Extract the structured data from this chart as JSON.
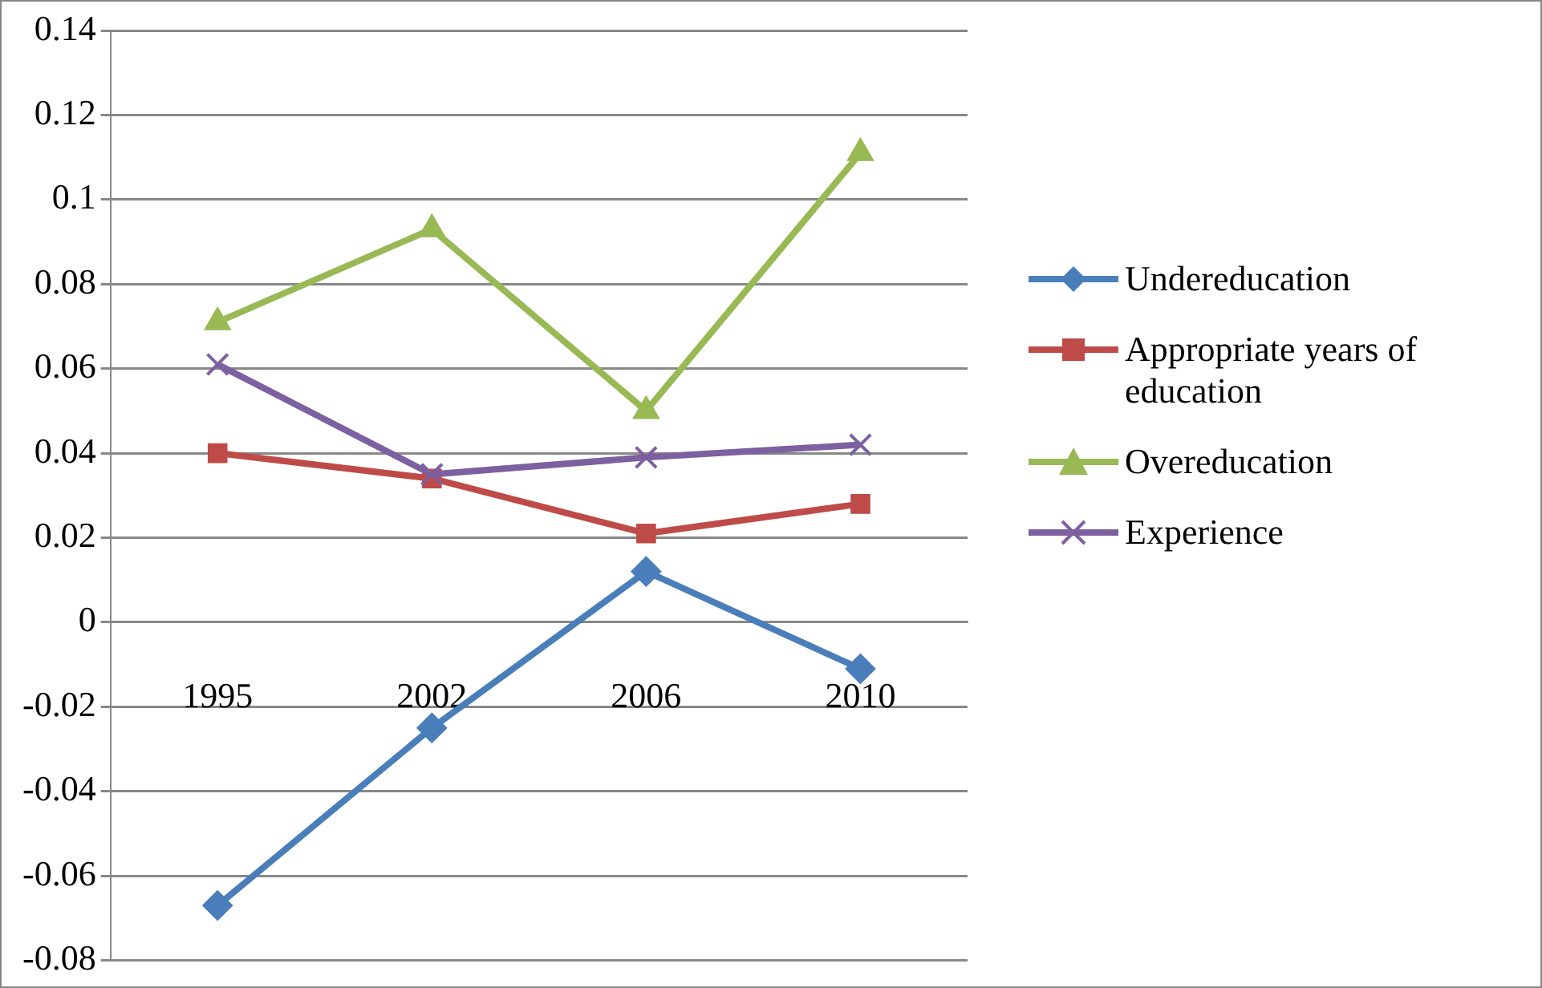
{
  "chart_data": {
    "type": "line",
    "categories": [
      "1995",
      "2002",
      "2006",
      "2010"
    ],
    "ylim": [
      -0.08,
      0.14
    ],
    "yticks": [
      -0.08,
      -0.06,
      -0.04,
      -0.02,
      0,
      0.02,
      0.04,
      0.06,
      0.08,
      0.1,
      0.12,
      0.14
    ],
    "grid": "y",
    "legend": "right",
    "series": [
      {
        "name": "Undereducation",
        "color": "#4a7ebb",
        "marker": "diamond",
        "values": [
          -0.067,
          -0.025,
          0.012,
          -0.011
        ]
      },
      {
        "name": "Appropriate years of education",
        "color": "#be4b48",
        "marker": "square",
        "values": [
          0.04,
          0.034,
          0.021,
          0.028
        ]
      },
      {
        "name": "Overeducation",
        "color": "#98b954",
        "marker": "triangle",
        "values": [
          0.071,
          0.093,
          0.05,
          0.111
        ]
      },
      {
        "name": "Experience",
        "color": "#7d60a0",
        "marker": "cross",
        "values": [
          0.061,
          0.035,
          0.039,
          0.042
        ]
      }
    ]
  }
}
